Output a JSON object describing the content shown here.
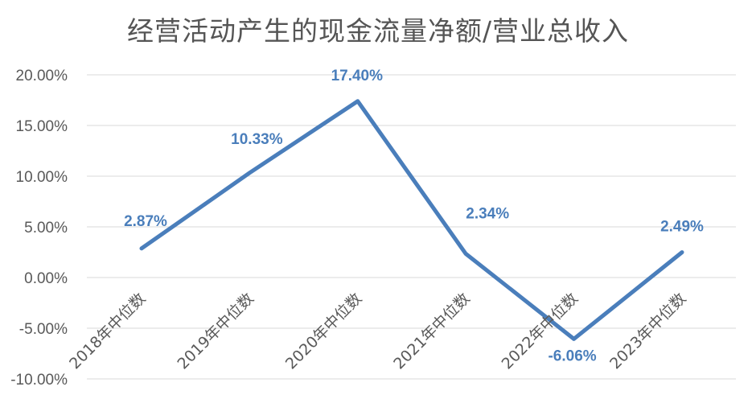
{
  "chart_data": {
    "type": "line",
    "title": "经营活动产生的现金流量净额/营业总收入",
    "categories": [
      "2018年中位数",
      "2019年中位数",
      "2020年中位数",
      "2021年中位数",
      "2022年中位数",
      "2023年中位数"
    ],
    "values": [
      2.87,
      10.33,
      17.4,
      2.34,
      -6.06,
      2.49
    ],
    "data_labels": [
      "2.87%",
      "10.33%",
      "17.40%",
      "2.34%",
      "-6.06%",
      "2.49%"
    ],
    "ylim": [
      -10,
      20
    ],
    "yticks": [
      20,
      15,
      10,
      5,
      0,
      -5,
      -10
    ],
    "ytick_labels": [
      "20.00%",
      "15.00%",
      "10.00%",
      "5.00%",
      "0.00%",
      "-5.00%",
      "-10.00%"
    ],
    "grid": true,
    "legend": "none",
    "xlabel": "",
    "ylabel": "",
    "colors": {
      "line": "#4a7ebb",
      "label": "#4a7ebb",
      "grid": "#d9d9d9",
      "tick_text": "#595959",
      "title_text": "#555555"
    }
  }
}
